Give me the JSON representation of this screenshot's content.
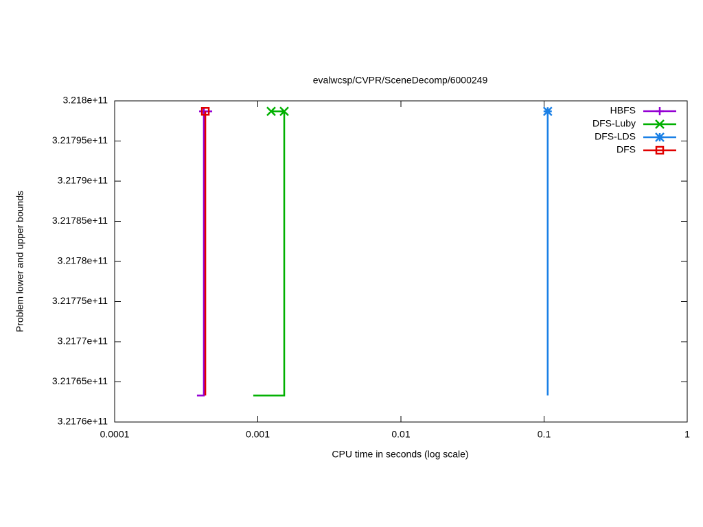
{
  "chart_data": {
    "type": "line",
    "title": "evalwcsp/CVPR/SceneDecomp/6000249",
    "x_label": "CPU time in seconds (log scale)",
    "y_label": "Problem lower and upper bounds",
    "xlog": true,
    "xlim": [
      0.0001,
      1
    ],
    "xticks": [
      0.0001,
      0.001,
      0.01,
      0.1,
      1
    ],
    "ylim": [
      321760000000,
      321800000000
    ],
    "yticks": [
      {
        "value": 321760000000,
        "label": "3.2176e+11"
      },
      {
        "value": 321765000000,
        "label": "3.21765e+11"
      },
      {
        "value": 321770000000,
        "label": "3.2177e+11"
      },
      {
        "value": 321775000000,
        "label": "3.21775e+11"
      },
      {
        "value": 321780000000,
        "label": "3.2178e+11"
      },
      {
        "value": 321785000000,
        "label": "3.21785e+11"
      },
      {
        "value": 321790000000,
        "label": "3.2179e+11"
      },
      {
        "value": 321795000000,
        "label": "3.21795e+11"
      },
      {
        "value": 321800000000,
        "label": "3.218e+11"
      }
    ],
    "legend": "top-right",
    "series": [
      {
        "name": "HBFS",
        "color": "#9400d3",
        "marker": "plus",
        "x": [
          0.000376,
          0.00042,
          0.00042,
          null,
          0.000389,
          0.00048
        ],
        "values": [
          321763300000,
          321763300000,
          321798700000,
          null,
          321798700000,
          321798700000
        ],
        "marker_x": [
          0.00042
        ],
        "marker_values": [
          321798700000
        ]
      },
      {
        "name": "DFS-Luby",
        "color": "#00b000",
        "marker": "cross",
        "x": [
          0.00093,
          0.00153,
          0.00153,
          0.00124
        ],
        "values": [
          321763300000,
          321763300000,
          321798700000,
          321798700000
        ],
        "marker_x": [
          0.00124,
          0.00153
        ],
        "marker_values": [
          321798700000,
          321798700000
        ]
      },
      {
        "name": "DFS-LDS",
        "color": "#1a80e6",
        "marker": "star",
        "x": [
          0.106,
          0.106
        ],
        "values": [
          321763300000,
          321798700000
        ],
        "marker_x": [
          0.106
        ],
        "marker_values": [
          321798700000
        ]
      },
      {
        "name": "DFS",
        "color": "#e00000",
        "marker": "square",
        "x": [
          0.00043,
          0.00043
        ],
        "values": [
          321763300000,
          321798700000
        ],
        "marker_x": [
          0.00043
        ],
        "marker_values": [
          321798700000
        ]
      }
    ]
  }
}
